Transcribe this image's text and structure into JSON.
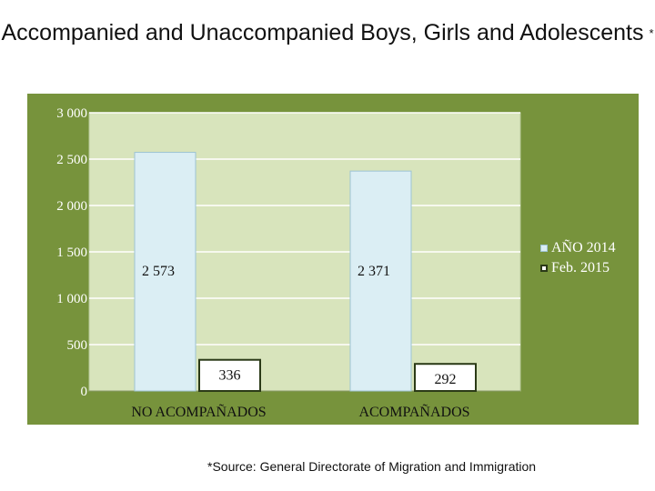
{
  "title": {
    "text": "Accompanied and Unaccompanied Boys, Girls and Adolescents",
    "marker": "*"
  },
  "source": "*Source: General Directorate of Migration and Immigration",
  "colors": {
    "panel": "#77933c",
    "plot": "#d8e4bc",
    "series1": "#dbeef4",
    "series2": "#ffffff"
  },
  "chart_data": {
    "type": "bar",
    "categories": [
      "NO ACOMPAÑADOS",
      "ACOMPAÑADOS"
    ],
    "series": [
      {
        "name": "AÑO 2014",
        "values": [
          2573,
          2371
        ],
        "labels": [
          "2 573",
          "2 371"
        ]
      },
      {
        "name": "Feb. 2015",
        "values": [
          336,
          292
        ],
        "labels": [
          "336",
          "292"
        ]
      }
    ],
    "yticks": [
      0,
      500,
      1000,
      1500,
      2000,
      2500,
      3000
    ],
    "ytick_labels": [
      "0",
      "500",
      "1 000",
      "1 500",
      "2 000",
      "2 500",
      "3 000"
    ],
    "ylim": [
      0,
      3000
    ],
    "grid": true,
    "legend_position": "right"
  }
}
